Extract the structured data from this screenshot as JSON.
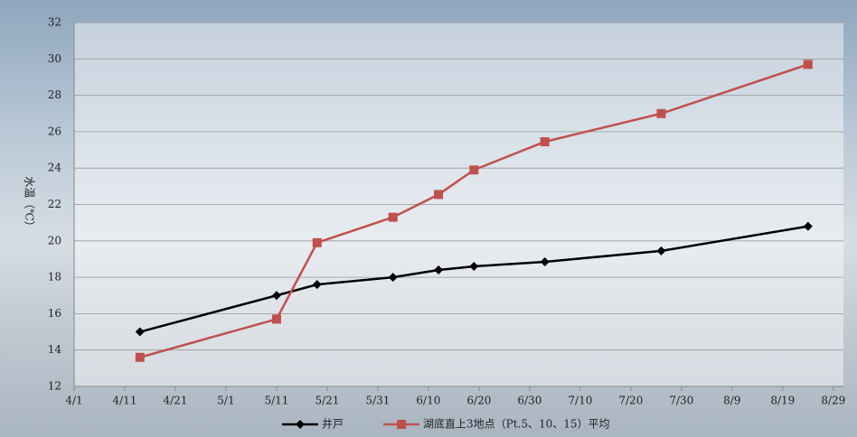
{
  "chart_data": {
    "type": "line",
    "y_label": "水温（℃）",
    "x": [
      13,
      40,
      48,
      63,
      72,
      79,
      93,
      116,
      145
    ],
    "series": [
      {
        "name": "井戸",
        "color": "#000000",
        "marker": "diamond",
        "values": [
          15.0,
          17.0,
          17.6,
          18.0,
          18.4,
          18.6,
          18.85,
          19.45,
          20.8
        ]
      },
      {
        "name": "湖底直上3地点（Pt.5、10、15）平均",
        "color": "#c0504d",
        "marker": "square",
        "values": [
          13.6,
          15.7,
          19.9,
          21.3,
          22.55,
          23.9,
          25.45,
          27.0,
          29.7
        ]
      }
    ],
    "xlim": [
      0,
      152
    ],
    "xticks": [
      {
        "value": 0,
        "label": "4/1"
      },
      {
        "value": 10,
        "label": "4/11"
      },
      {
        "value": 20,
        "label": "4/21"
      },
      {
        "value": 30,
        "label": "5/1"
      },
      {
        "value": 40,
        "label": "5/11"
      },
      {
        "value": 50,
        "label": "5/21"
      },
      {
        "value": 60,
        "label": "5/31"
      },
      {
        "value": 70,
        "label": "6/10"
      },
      {
        "value": 80,
        "label": "6/20"
      },
      {
        "value": 90,
        "label": "6/30"
      },
      {
        "value": 100,
        "label": "7/10"
      },
      {
        "value": 110,
        "label": "7/20"
      },
      {
        "value": 120,
        "label": "7/30"
      },
      {
        "value": 130,
        "label": "8/9"
      },
      {
        "value": 140,
        "label": "8/19"
      },
      {
        "value": 150,
        "label": "8/29"
      }
    ],
    "ylim": [
      12,
      32
    ],
    "yticks": [
      12,
      14,
      16,
      18,
      20,
      22,
      24,
      26,
      28,
      30,
      32
    ],
    "grid": true,
    "legend": "bottom"
  }
}
